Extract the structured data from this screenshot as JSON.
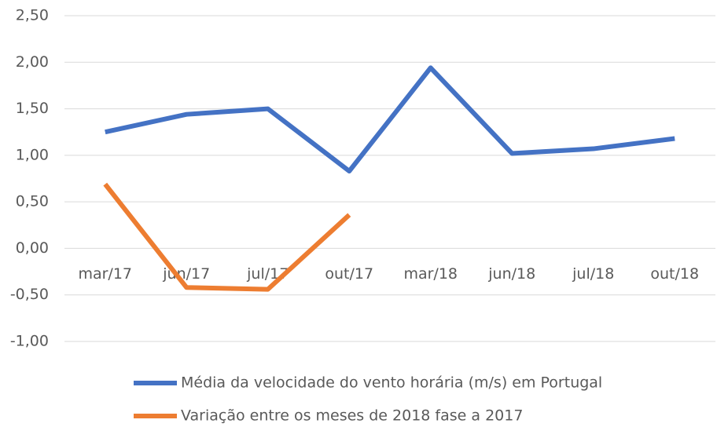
{
  "chart_data": {
    "type": "line",
    "categories": [
      "mar/17",
      "jun/17",
      "jul/17",
      "out/17",
      "mar/18",
      "jun/18",
      "jul/18",
      "out/18"
    ],
    "series": [
      {
        "name": "Média da velocidade do vento horária (m/s) em Portugal",
        "color": "#4472c4",
        "values": [
          1.25,
          1.44,
          1.5,
          0.83,
          1.94,
          1.02,
          1.07,
          1.18
        ]
      },
      {
        "name": "Variação entre os meses de 2018 fase a 2017",
        "color": "#ed7d31",
        "values": [
          0.69,
          -0.42,
          -0.44,
          0.36,
          null,
          null,
          null,
          null
        ]
      }
    ],
    "ylim": [
      -1,
      2.5
    ],
    "yticks": [
      {
        "value": -1,
        "label": "-1,00"
      },
      {
        "value": -0.5,
        "label": "-0,50"
      },
      {
        "value": 0,
        "label": "0,00"
      },
      {
        "value": 0.5,
        "label": "0,50"
      },
      {
        "value": 1,
        "label": "1,00"
      },
      {
        "value": 1.5,
        "label": "1,50"
      },
      {
        "value": 2,
        "label": "2,00"
      },
      {
        "value": 2.5,
        "label": "2,50"
      }
    ],
    "grid": true,
    "legend": "bottom"
  }
}
